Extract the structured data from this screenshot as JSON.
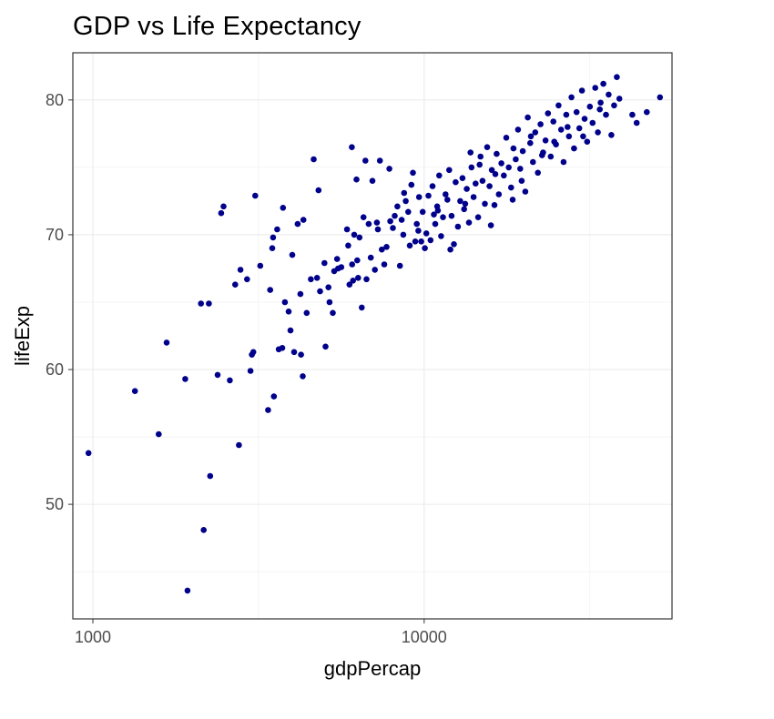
{
  "chart_data": {
    "type": "scatter",
    "title": "GDP vs Life Expectancy",
    "xlabel": "gdpPercap",
    "ylabel": "lifeExp",
    "x_scale": "log10",
    "xlim": [
      870,
      56000
    ],
    "ylim": [
      41.5,
      83.5
    ],
    "x_ticks": [
      1000,
      10000
    ],
    "x_tick_labels": [
      "1000",
      "10000"
    ],
    "y_ticks": [
      50,
      60,
      70,
      80
    ],
    "y_tick_labels": [
      "50",
      "60",
      "70",
      "80"
    ],
    "grid": true,
    "point_color": "#00008b",
    "points": [
      [
        970,
        53.8
      ],
      [
        1340,
        58.4
      ],
      [
        1580,
        55.2
      ],
      [
        1670,
        62.0
      ],
      [
        1900,
        59.3
      ],
      [
        1930,
        43.6
      ],
      [
        2120,
        64.9
      ],
      [
        2160,
        48.1
      ],
      [
        2240,
        64.9
      ],
      [
        2260,
        52.1
      ],
      [
        2380,
        59.6
      ],
      [
        2440,
        71.6
      ],
      [
        2480,
        72.1
      ],
      [
        2590,
        59.2
      ],
      [
        2690,
        66.3
      ],
      [
        2760,
        54.4
      ],
      [
        2790,
        67.4
      ],
      [
        2920,
        66.7
      ],
      [
        2990,
        59.9
      ],
      [
        3020,
        61.1
      ],
      [
        3050,
        61.3
      ],
      [
        3090,
        72.9
      ],
      [
        3200,
        67.7
      ],
      [
        3380,
        57.0
      ],
      [
        3430,
        65.9
      ],
      [
        3480,
        69.0
      ],
      [
        3500,
        69.8
      ],
      [
        3520,
        58.0
      ],
      [
        3600,
        70.4
      ],
      [
        3640,
        61.5
      ],
      [
        3730,
        61.6
      ],
      [
        3750,
        72.0
      ],
      [
        3800,
        65.0
      ],
      [
        3900,
        64.3
      ],
      [
        4000,
        68.5
      ],
      [
        4050,
        61.3
      ],
      [
        4150,
        70.8
      ],
      [
        4230,
        65.6
      ],
      [
        4250,
        61.1
      ],
      [
        4300,
        59.5
      ],
      [
        4320,
        71.1
      ],
      [
        4420,
        64.2
      ],
      [
        4550,
        66.7
      ],
      [
        4640,
        75.6
      ],
      [
        4750,
        66.8
      ],
      [
        4800,
        73.3
      ],
      [
        4850,
        65.8
      ],
      [
        5000,
        67.9
      ],
      [
        5040,
        61.7
      ],
      [
        5140,
        66.1
      ],
      [
        5180,
        65.0
      ],
      [
        5300,
        64.2
      ],
      [
        5350,
        67.3
      ],
      [
        5460,
        68.2
      ],
      [
        5620,
        67.6
      ],
      [
        5850,
        70.4
      ],
      [
        5900,
        69.2
      ],
      [
        5950,
        66.3
      ],
      [
        6050,
        76.5
      ],
      [
        6060,
        67.8
      ],
      [
        6150,
        70.0
      ],
      [
        6250,
        74.1
      ],
      [
        6280,
        68.1
      ],
      [
        6320,
        66.8
      ],
      [
        6380,
        69.8
      ],
      [
        6480,
        64.6
      ],
      [
        6560,
        71.3
      ],
      [
        6650,
        75.5
      ],
      [
        6700,
        66.7
      ],
      [
        6800,
        70.8
      ],
      [
        6900,
        68.3
      ],
      [
        6980,
        74.0
      ],
      [
        7100,
        67.4
      ],
      [
        7250,
        70.4
      ],
      [
        7350,
        75.5
      ],
      [
        7450,
        68.9
      ],
      [
        7580,
        67.8
      ],
      [
        7700,
        69.1
      ],
      [
        7850,
        74.9
      ],
      [
        7900,
        71.0
      ],
      [
        8050,
        70.5
      ],
      [
        8150,
        71.4
      ],
      [
        8300,
        72.1
      ],
      [
        8450,
        67.7
      ],
      [
        8550,
        71.1
      ],
      [
        8650,
        70.0
      ],
      [
        8800,
        72.5
      ],
      [
        8950,
        71.7
      ],
      [
        9050,
        69.2
      ],
      [
        9150,
        73.7
      ],
      [
        9250,
        74.6
      ],
      [
        9400,
        69.5
      ],
      [
        9500,
        70.8
      ],
      [
        9650,
        72.8
      ],
      [
        9800,
        69.5
      ],
      [
        9900,
        71.7
      ],
      [
        10050,
        69.0
      ],
      [
        10150,
        70.1
      ],
      [
        10300,
        72.9
      ],
      [
        10450,
        69.6
      ],
      [
        10600,
        73.6
      ],
      [
        10800,
        70.8
      ],
      [
        10950,
        72.1
      ],
      [
        11100,
        74.4
      ],
      [
        11250,
        69.9
      ],
      [
        11400,
        71.3
      ],
      [
        11600,
        73.0
      ],
      [
        11750,
        72.6
      ],
      [
        11900,
        74.8
      ],
      [
        12100,
        71.4
      ],
      [
        12300,
        69.3
      ],
      [
        12450,
        73.9
      ],
      [
        12650,
        70.6
      ],
      [
        12850,
        72.5
      ],
      [
        13050,
        74.2
      ],
      [
        13200,
        71.9
      ],
      [
        13450,
        73.4
      ],
      [
        13650,
        70.9
      ],
      [
        13900,
        75.0
      ],
      [
        14100,
        72.8
      ],
      [
        14300,
        73.8
      ],
      [
        14550,
        71.3
      ],
      [
        14800,
        75.8
      ],
      [
        15000,
        74.0
      ],
      [
        15250,
        72.3
      ],
      [
        15500,
        76.5
      ],
      [
        15750,
        73.6
      ],
      [
        16000,
        74.8
      ],
      [
        16300,
        72.2
      ],
      [
        16550,
        76.0
      ],
      [
        16800,
        73.0
      ],
      [
        17100,
        75.3
      ],
      [
        17400,
        74.4
      ],
      [
        17700,
        77.2
      ],
      [
        18000,
        75.0
      ],
      [
        18300,
        73.5
      ],
      [
        18600,
        76.4
      ],
      [
        18900,
        75.6
      ],
      [
        19200,
        77.8
      ],
      [
        19500,
        74.9
      ],
      [
        19850,
        76.2
      ],
      [
        20200,
        73.2
      ],
      [
        20550,
        78.7
      ],
      [
        20900,
        76.8
      ],
      [
        21300,
        75.4
      ],
      [
        21650,
        77.6
      ],
      [
        22050,
        74.6
      ],
      [
        22450,
        78.2
      ],
      [
        22850,
        76.1
      ],
      [
        23250,
        77.0
      ],
      [
        23650,
        79.0
      ],
      [
        24100,
        75.8
      ],
      [
        24550,
        78.4
      ],
      [
        25000,
        76.7
      ],
      [
        25450,
        79.6
      ],
      [
        25900,
        77.8
      ],
      [
        26350,
        75.4
      ],
      [
        26850,
        78.9
      ],
      [
        27350,
        77.3
      ],
      [
        27850,
        80.2
      ],
      [
        28350,
        76.4
      ],
      [
        28850,
        79.1
      ],
      [
        29400,
        77.9
      ],
      [
        29950,
        80.7
      ],
      [
        30500,
        78.6
      ],
      [
        31050,
        76.9
      ],
      [
        31650,
        79.5
      ],
      [
        32250,
        78.3
      ],
      [
        32850,
        80.9
      ],
      [
        33450,
        77.6
      ],
      [
        34100,
        79.8
      ],
      [
        34750,
        81.2
      ],
      [
        35400,
        78.9
      ],
      [
        36050,
        80.4
      ],
      [
        36750,
        77.4
      ],
      [
        37450,
        79.6
      ],
      [
        38150,
        81.7
      ],
      [
        38850,
        80.1
      ],
      [
        42500,
        78.9
      ],
      [
        43800,
        78.3
      ],
      [
        47000,
        79.1
      ],
      [
        51500,
        80.2
      ],
      [
        13300,
        72.3
      ],
      [
        15900,
        70.7
      ],
      [
        18500,
        72.6
      ],
      [
        12000,
        68.9
      ],
      [
        11000,
        71.8
      ],
      [
        14700,
        75.2
      ],
      [
        19700,
        74.0
      ],
      [
        21000,
        77.3
      ],
      [
        24700,
        76.9
      ],
      [
        27100,
        78.0
      ],
      [
        30200,
        77.3
      ],
      [
        33900,
        79.3
      ],
      [
        9600,
        70.3
      ],
      [
        10700,
        71.5
      ],
      [
        8700,
        73.1
      ],
      [
        13800,
        76.1
      ],
      [
        16400,
        74.5
      ],
      [
        22700,
        75.9
      ],
      [
        7200,
        70.9
      ],
      [
        6100,
        66.6
      ],
      [
        5500,
        67.5
      ],
      [
        3950,
        62.9
      ]
    ]
  }
}
